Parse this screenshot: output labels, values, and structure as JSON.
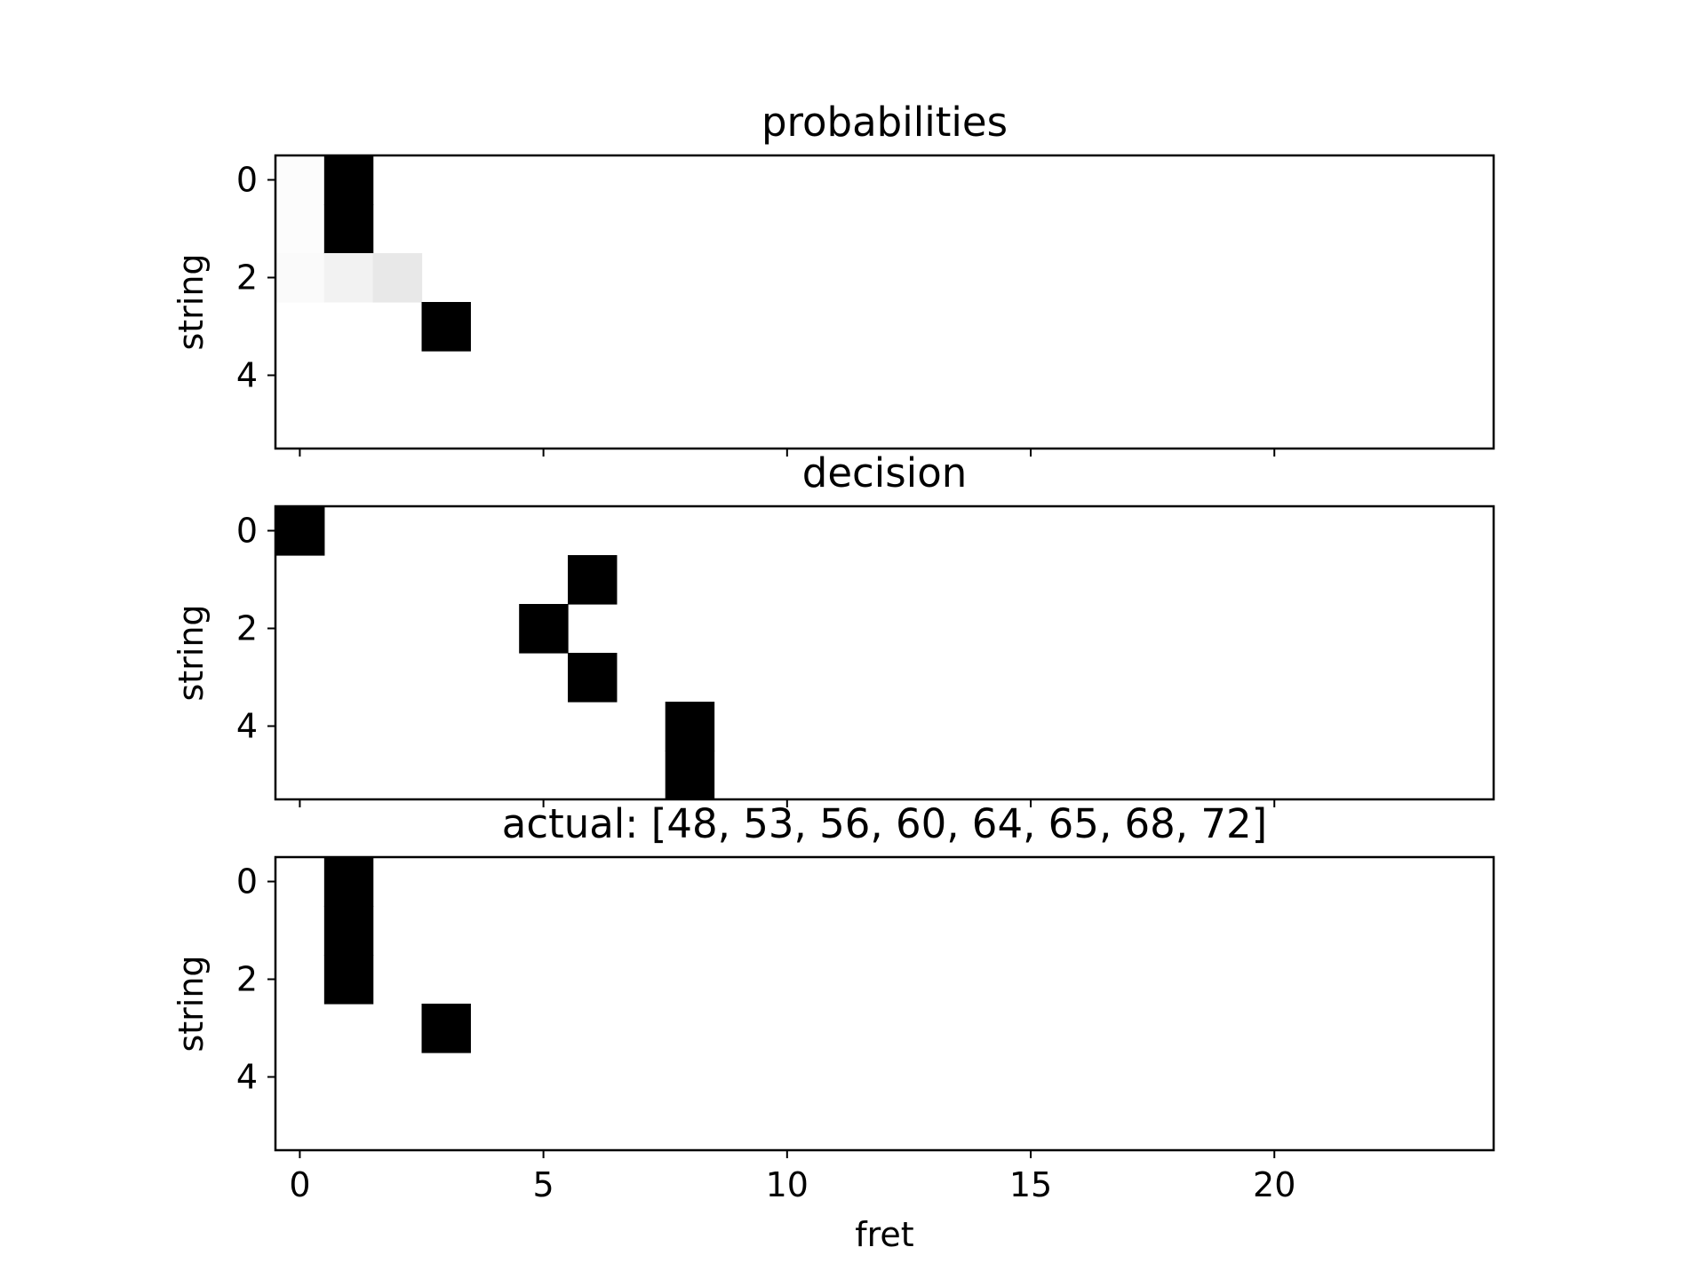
{
  "chart_data": [
    {
      "type": "heatmap",
      "title": "probabilities",
      "xlabel": "",
      "ylabel": "string",
      "colormap": "gray_r",
      "rows": 6,
      "cols": 25,
      "xlim": [
        -0.5,
        24.5
      ],
      "ylim": [
        5.5,
        -0.5
      ],
      "xticks": [
        0,
        5,
        10,
        15,
        20
      ],
      "xtick_labels_visible": false,
      "yticks": [
        0,
        2,
        4
      ],
      "ytick_labels": [
        "0",
        "2",
        "4"
      ],
      "cells": [
        {
          "row": 0,
          "col": 0,
          "value": 0.01
        },
        {
          "row": 1,
          "col": 0,
          "value": 0.01
        },
        {
          "row": 2,
          "col": 0,
          "value": 0.02
        },
        {
          "row": 0,
          "col": 1,
          "value": 1.0
        },
        {
          "row": 1,
          "col": 1,
          "value": 1.0
        },
        {
          "row": 2,
          "col": 1,
          "value": 0.05
        },
        {
          "row": 2,
          "col": 2,
          "value": 0.09
        },
        {
          "row": 3,
          "col": 3,
          "value": 1.0
        }
      ]
    },
    {
      "type": "heatmap",
      "title": "decision",
      "xlabel": "",
      "ylabel": "string",
      "colormap": "gray_r",
      "rows": 6,
      "cols": 25,
      "xlim": [
        -0.5,
        24.5
      ],
      "ylim": [
        5.5,
        -0.5
      ],
      "xticks": [
        0,
        5,
        10,
        15,
        20
      ],
      "xtick_labels_visible": false,
      "yticks": [
        0,
        2,
        4
      ],
      "ytick_labels": [
        "0",
        "2",
        "4"
      ],
      "cells": [
        {
          "row": 0,
          "col": 0,
          "value": 1.0
        },
        {
          "row": 1,
          "col": 6,
          "value": 1.0
        },
        {
          "row": 2,
          "col": 5,
          "value": 1.0
        },
        {
          "row": 3,
          "col": 6,
          "value": 1.0
        },
        {
          "row": 4,
          "col": 8,
          "value": 1.0
        },
        {
          "row": 5,
          "col": 8,
          "value": 1.0
        }
      ]
    },
    {
      "type": "heatmap",
      "title": "actual: [48, 53, 56, 60, 64, 65, 68, 72]",
      "xlabel": "fret",
      "ylabel": "string",
      "colormap": "gray_r",
      "rows": 6,
      "cols": 25,
      "xlim": [
        -0.5,
        24.5
      ],
      "ylim": [
        5.5,
        -0.5
      ],
      "xticks": [
        0,
        5,
        10,
        15,
        20
      ],
      "xtick_labels": [
        "0",
        "5",
        "10",
        "15",
        "20"
      ],
      "xtick_labels_visible": true,
      "yticks": [
        0,
        2,
        4
      ],
      "ytick_labels": [
        "0",
        "2",
        "4"
      ],
      "cells": [
        {
          "row": 0,
          "col": 1,
          "value": 1.0
        },
        {
          "row": 1,
          "col": 1,
          "value": 1.0
        },
        {
          "row": 2,
          "col": 1,
          "value": 1.0
        },
        {
          "row": 3,
          "col": 3,
          "value": 1.0
        }
      ]
    }
  ]
}
